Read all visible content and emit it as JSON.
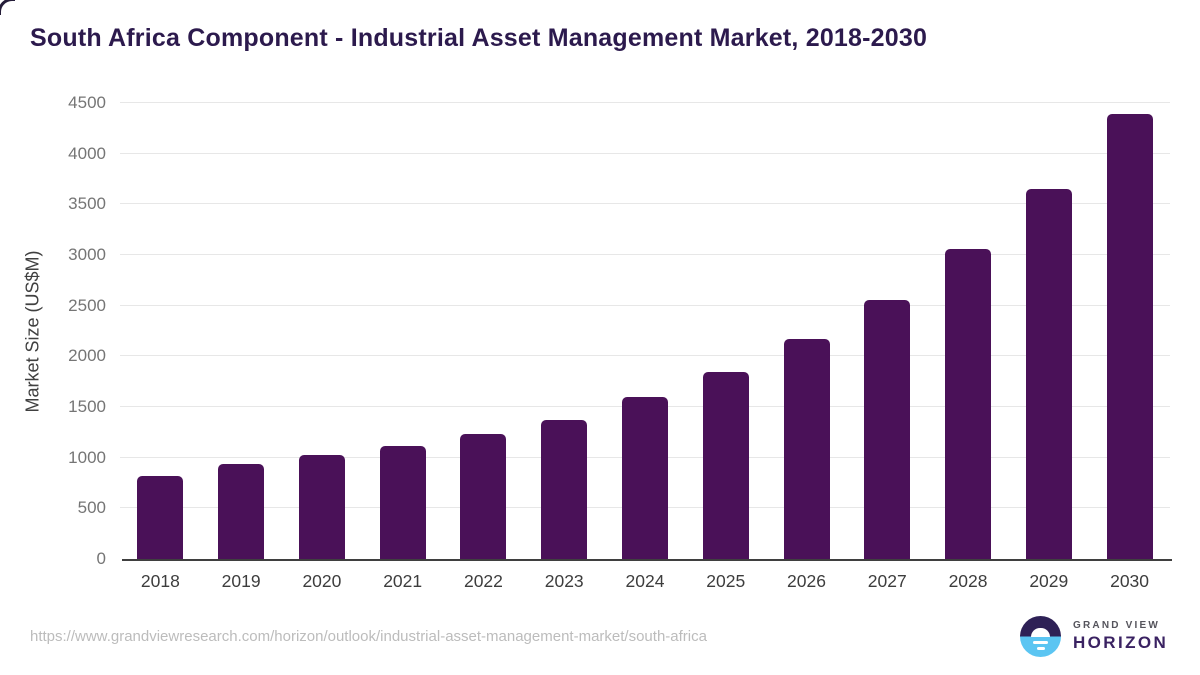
{
  "title": "South Africa Component - Industrial Asset Management Market, 2018-2030",
  "chart_data": {
    "type": "bar",
    "categories": [
      "2018",
      "2019",
      "2020",
      "2021",
      "2022",
      "2023",
      "2024",
      "2025",
      "2026",
      "2027",
      "2028",
      "2029",
      "2030"
    ],
    "values": [
      820,
      940,
      1025,
      1115,
      1230,
      1375,
      1600,
      1850,
      2170,
      2560,
      3055,
      3650,
      4390
    ],
    "title": "South Africa Component - Industrial Asset Management Market, 2018-2030",
    "xlabel": "",
    "ylabel": "Market Size (US$M)",
    "ylim": [
      0,
      4500
    ],
    "ytick_step": 500,
    "grid": true,
    "legend": "none",
    "bar_color": "#4a1158"
  },
  "colors": {
    "bar": "#4a1158",
    "title_text": "#2c1a4d",
    "grid_line": "#e7e7e7",
    "axis_line": "#3f3f3f",
    "ytick_text": "#757575",
    "xtick_text": "#3d3d3d",
    "url_text": "#bcbcbc",
    "logo_purple": "#2e2156",
    "logo_blue": "#5bc5f2"
  },
  "footer": {
    "source_url": "https://www.grandviewresearch.com/horizon/outlook/industrial-asset-management-market/south-africa",
    "logo": {
      "line1": "GRAND VIEW",
      "line2": "HORIZON",
      "mark": "horizon-sun-circle-icon"
    }
  }
}
